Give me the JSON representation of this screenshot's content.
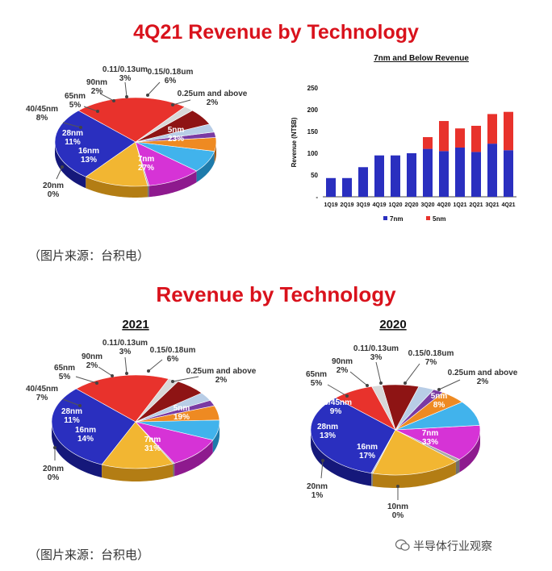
{
  "titles": {
    "top": "4Q21 Revenue by Technology",
    "bottom": "Revenue by Technology"
  },
  "captions": {
    "first": "（图片来源：台积电）",
    "second": "（图片来源：台积电）"
  },
  "watermark": "半导体行业观察",
  "colors": {
    "title": "#d9121c",
    "series_7nm": "#2a2fbf",
    "series_5nm": "#e8322c"
  },
  "chart_data": [
    {
      "type": "pie",
      "title": "",
      "slices": [
        {
          "label": "7nm",
          "value": 27
        },
        {
          "label": "16nm",
          "value": 13
        },
        {
          "label": "20nm",
          "value": 0
        },
        {
          "label": "28nm",
          "value": 11
        },
        {
          "label": "40/45nm",
          "value": 8
        },
        {
          "label": "65nm",
          "value": 5
        },
        {
          "label": "90nm",
          "value": 2
        },
        {
          "label": "0.11/0.13um",
          "value": 3
        },
        {
          "label": "0.15/0.18um",
          "value": 6
        },
        {
          "label": "0.25um and above",
          "value": 2
        },
        {
          "label": "5nm",
          "value": 23
        }
      ]
    },
    {
      "type": "bar",
      "title": "7nm and Below Revenue",
      "ylabel": "Revenue (NT$B)",
      "xlabel": "",
      "ylim": [
        0,
        250
      ],
      "yticks": [
        "-",
        "50",
        "100",
        "150",
        "200",
        "250"
      ],
      "categories": [
        "1Q19",
        "2Q19",
        "3Q19",
        "4Q19",
        "1Q20",
        "2Q20",
        "3Q20",
        "4Q20",
        "1Q21",
        "2Q21",
        "3Q21",
        "4Q21"
      ],
      "series": [
        {
          "name": "7nm",
          "values": [
            43,
            43,
            68,
            95,
            95,
            100,
            110,
            105,
            113,
            103,
            122,
            107
          ]
        },
        {
          "name": "5nm",
          "values": [
            0,
            0,
            0,
            0,
            0,
            0,
            27,
            69,
            44,
            60,
            68,
            88
          ]
        }
      ],
      "legend": "bottom"
    },
    {
      "type": "pie",
      "title": "2021",
      "slices": [
        {
          "label": "7nm",
          "value": 31
        },
        {
          "label": "16nm",
          "value": 14
        },
        {
          "label": "20nm",
          "value": 0
        },
        {
          "label": "28nm",
          "value": 11
        },
        {
          "label": "40/45nm",
          "value": 7
        },
        {
          "label": "65nm",
          "value": 5
        },
        {
          "label": "90nm",
          "value": 2
        },
        {
          "label": "0.11/0.13um",
          "value": 3
        },
        {
          "label": "0.15/0.18um",
          "value": 6
        },
        {
          "label": "0.25um and above",
          "value": 2
        },
        {
          "label": "5nm",
          "value": 19
        }
      ]
    },
    {
      "type": "pie",
      "title": "2020",
      "slices": [
        {
          "label": "7nm",
          "value": 33
        },
        {
          "label": "10nm",
          "value": 0
        },
        {
          "label": "16nm",
          "value": 17
        },
        {
          "label": "20nm",
          "value": 1
        },
        {
          "label": "28nm",
          "value": 13
        },
        {
          "label": "40/45nm",
          "value": 9
        },
        {
          "label": "65nm",
          "value": 5
        },
        {
          "label": "90nm",
          "value": 2
        },
        {
          "label": "0.11/0.13um",
          "value": 3
        },
        {
          "label": "0.15/0.18um",
          "value": 7
        },
        {
          "label": "0.25um and above",
          "value": 2
        },
        {
          "label": "5nm",
          "value": 8
        }
      ]
    }
  ]
}
